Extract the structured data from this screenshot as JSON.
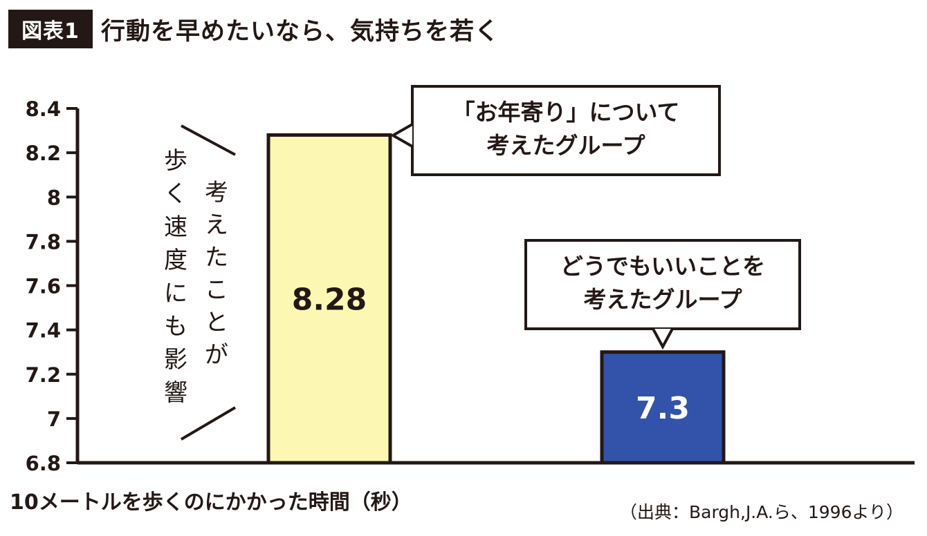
{
  "header": {
    "figure_label": "図表1",
    "title": "行動を早めたいなら、気持ちを若く"
  },
  "source": "（出典：Bargh,J.A.ら、1996より）",
  "annotation": {
    "left_column": "歩く速度にも影響",
    "right_column": "考えたことが"
  },
  "chart_data": {
    "type": "bar",
    "title": "行動を早めたいなら、気持ちを若く",
    "xlabel": "10メートルを歩くのにかかった時間（秒）",
    "ylabel": "",
    "ylim": [
      6.8,
      8.4
    ],
    "yticks": [
      6.8,
      7,
      7.2,
      7.4,
      7.6,
      7.8,
      8,
      8.2,
      8.4
    ],
    "ytick_labels": [
      "6.8",
      "7",
      "7.2",
      "7.4",
      "7.6",
      "7.8",
      "8",
      "8.2",
      "8.4"
    ],
    "categories": [
      [
        "「お年寄り」について",
        "考えたグループ"
      ],
      [
        "どうでもいいことを",
        "考えたグループ"
      ]
    ],
    "values": [
      8.28,
      7.3
    ],
    "value_labels": [
      "8.28",
      "7.3"
    ],
    "colors": [
      "#fcf8b4",
      "#3352aa"
    ],
    "value_label_colors": [
      "#231815",
      "#ffffff"
    ],
    "grid": false,
    "legend": "none"
  }
}
